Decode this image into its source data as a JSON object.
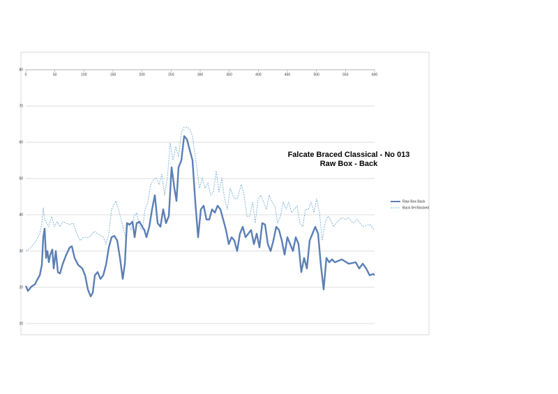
{
  "chart_data": {
    "type": "line",
    "title": "Falcate Braced Classical - No 013",
    "subtitle": "Raw Box - Back",
    "xlim": [
      0,
      600
    ],
    "xticks": [
      0,
      50,
      100,
      150,
      200,
      250,
      300,
      350,
      400,
      450,
      500,
      550,
      600
    ],
    "ylim": [
      10,
      80
    ],
    "yticks": [
      10,
      20,
      30,
      40,
      50,
      60,
      70,
      80
    ],
    "grid": true,
    "legend": "right",
    "series": [
      {
        "name": "Raw Box Back",
        "color": "#5b7fb5",
        "x": [
          0,
          3.6,
          9.6,
          15.6,
          20.4,
          24,
          27.6,
          30,
          32.4,
          34.8,
          37.2,
          39.6,
          42,
          45.6,
          48,
          51.6,
          55.2,
          58.8,
          63.6,
          69.6,
          75.6,
          79.2,
          84,
          90,
          97.2,
          102,
          106.8,
          111.6,
          115.2,
          118.8,
          123.6,
          128.4,
          133.2,
          138,
          142.8,
          147.6,
          152.4,
          157.2,
          162,
          166.8,
          170.4,
          174,
          178.8,
          183.6,
          187.2,
          190.8,
          195.6,
          200.4,
          204,
          207.6,
          212.4,
          217.2,
          222,
          226.8,
          231.6,
          236.4,
          241.2,
          246,
          250.8,
          255.6,
          259.2,
          262.8,
          267.6,
          272.4,
          277.2,
          282,
          286.8,
          291.6,
          296.4,
          301.2,
          306,
          310.8,
          315.6,
          320.4,
          325.2,
          330,
          334.8,
          339.6,
          344.4,
          349.2,
          354,
          358.8,
          363.6,
          368.4,
          373.2,
          378,
          382.8,
          387.6,
          392.4,
          397.2,
          402,
          406.8,
          411.6,
          416.4,
          421.2,
          426,
          430.8,
          435.6,
          440.4,
          445.2,
          450,
          454.8,
          459.6,
          464.4,
          469.2,
          474,
          478.8,
          483.6,
          488.4,
          493.2,
          498,
          502.8,
          507.6,
          512.4,
          517.2,
          522,
          526.8,
          531.6,
          543.6,
          555.6,
          567.6,
          573.6,
          579.6,
          585.6,
          591.6,
          597.6,
          600
        ],
        "values": [
          20.4,
          19.0,
          20.2,
          20.8,
          22.3,
          23.3,
          26.2,
          33.8,
          36.2,
          28.1,
          30.0,
          26.9,
          29.0,
          30.4,
          25.2,
          30.0,
          24.2,
          23.8,
          26.5,
          29.0,
          31.0,
          31.3,
          28.1,
          26.2,
          25.2,
          23.3,
          19.4,
          17.5,
          18.5,
          23.3,
          24.2,
          22.3,
          23.3,
          26.2,
          31.0,
          33.8,
          34.2,
          32.9,
          28.1,
          22.3,
          26.5,
          37.7,
          37.3,
          38.1,
          33.8,
          37.7,
          38.1,
          36.7,
          35.8,
          33.8,
          36.7,
          41.5,
          45.4,
          37.7,
          36.7,
          41.5,
          37.7,
          39.6,
          53.1,
          47.3,
          43.8,
          53.1,
          55.0,
          61.7,
          60.8,
          57.9,
          55.0,
          43.5,
          33.8,
          41.5,
          42.5,
          38.7,
          38.7,
          41.5,
          40.6,
          42.5,
          41.5,
          38.7,
          35.8,
          31.9,
          33.8,
          32.9,
          30.0,
          34.8,
          36.7,
          33.8,
          34.8,
          35.8,
          31.9,
          34.8,
          31.0,
          37.7,
          37.3,
          31.9,
          30.0,
          32.9,
          36.7,
          35.8,
          32.9,
          29.0,
          33.8,
          31.9,
          30.0,
          33.8,
          31.9,
          24.2,
          28.1,
          25.2,
          32.9,
          34.8,
          36.7,
          34.8,
          26.2,
          19.4,
          28.1,
          26.9,
          27.7,
          26.9,
          27.7,
          26.5,
          26.9,
          25.2,
          26.5,
          25.2,
          23.3,
          23.7,
          23.3
        ]
      },
      {
        "name": "Back 5H Blocked",
        "color": "#7fb3d5",
        "x": [
          0,
          9.6,
          18,
          24,
          27.6,
          30,
          32.4,
          39.6,
          44.4,
          49.2,
          54,
          58.8,
          63.6,
          69.6,
          75.6,
          81.6,
          87.6,
          93.6,
          99.6,
          109.2,
          117.6,
          123.6,
          133.2,
          138,
          142.8,
          147.6,
          154.8,
          159.6,
          165.6,
          171.6,
          176.4,
          181.2,
          186,
          190.8,
          195.6,
          200.4,
          205.2,
          210,
          214.8,
          219.6,
          224.4,
          229.2,
          234,
          238.8,
          243.6,
          248.4,
          253.2,
          258,
          262.8,
          267.6,
          272.4,
          277.2,
          282,
          286.8,
          291.6,
          298.8,
          303.6,
          308.4,
          313.2,
          318,
          322.8,
          327.6,
          332.4,
          337.2,
          342,
          346.8,
          351.6,
          358.8,
          363.6,
          370.8,
          375.6,
          380.4,
          385.2,
          390,
          394.8,
          399.6,
          404.4,
          409.2,
          414,
          418.8,
          423.6,
          428.4,
          433.2,
          438,
          442.8,
          447.6,
          452.4,
          457.2,
          462,
          466.8,
          471.6,
          476.4,
          481.2,
          486,
          490.8,
          495.6,
          500.4,
          505.2,
          510,
          514.8,
          519.6,
          524.4,
          529.2,
          536.4,
          543.6,
          550.8,
          555.6,
          562.8,
          570,
          579.6,
          591.6,
          600
        ],
        "values": [
          30.0,
          31.0,
          32.9,
          34.8,
          37.7,
          41.9,
          38.7,
          36.7,
          39.6,
          36.7,
          38.1,
          36.7,
          38.1,
          37.7,
          37.3,
          37.7,
          34.8,
          32.9,
          33.8,
          33.8,
          35.4,
          34.8,
          33.8,
          31.9,
          34.8,
          41.5,
          43.8,
          41.5,
          37.7,
          33.8,
          37.7,
          35.8,
          39.6,
          40.6,
          36.7,
          35.8,
          41.5,
          43.5,
          48.3,
          49.6,
          50.2,
          48.3,
          51.2,
          45.4,
          50.2,
          59.8,
          55.0,
          58.8,
          56.0,
          62.7,
          64.2,
          64.2,
          63.7,
          61.7,
          56.0,
          47.3,
          50.2,
          47.3,
          48.8,
          45.4,
          46.3,
          52.1,
          46.3,
          50.2,
          44.4,
          41.5,
          47.3,
          44.4,
          44.4,
          48.3,
          45.4,
          39.6,
          39.6,
          43.5,
          37.7,
          44.4,
          45.4,
          43.5,
          41.5,
          45.4,
          43.5,
          42.5,
          37.7,
          39.6,
          43.5,
          41.5,
          43.5,
          40.6,
          41.5,
          42.5,
          37.7,
          36.7,
          41.5,
          41.5,
          43.5,
          40.6,
          44.4,
          40.6,
          32.9,
          37.7,
          39.6,
          38.7,
          36.7,
          38.1,
          39.2,
          38.7,
          39.2,
          37.7,
          38.7,
          36.7,
          37.3,
          35.8
        ]
      }
    ]
  }
}
